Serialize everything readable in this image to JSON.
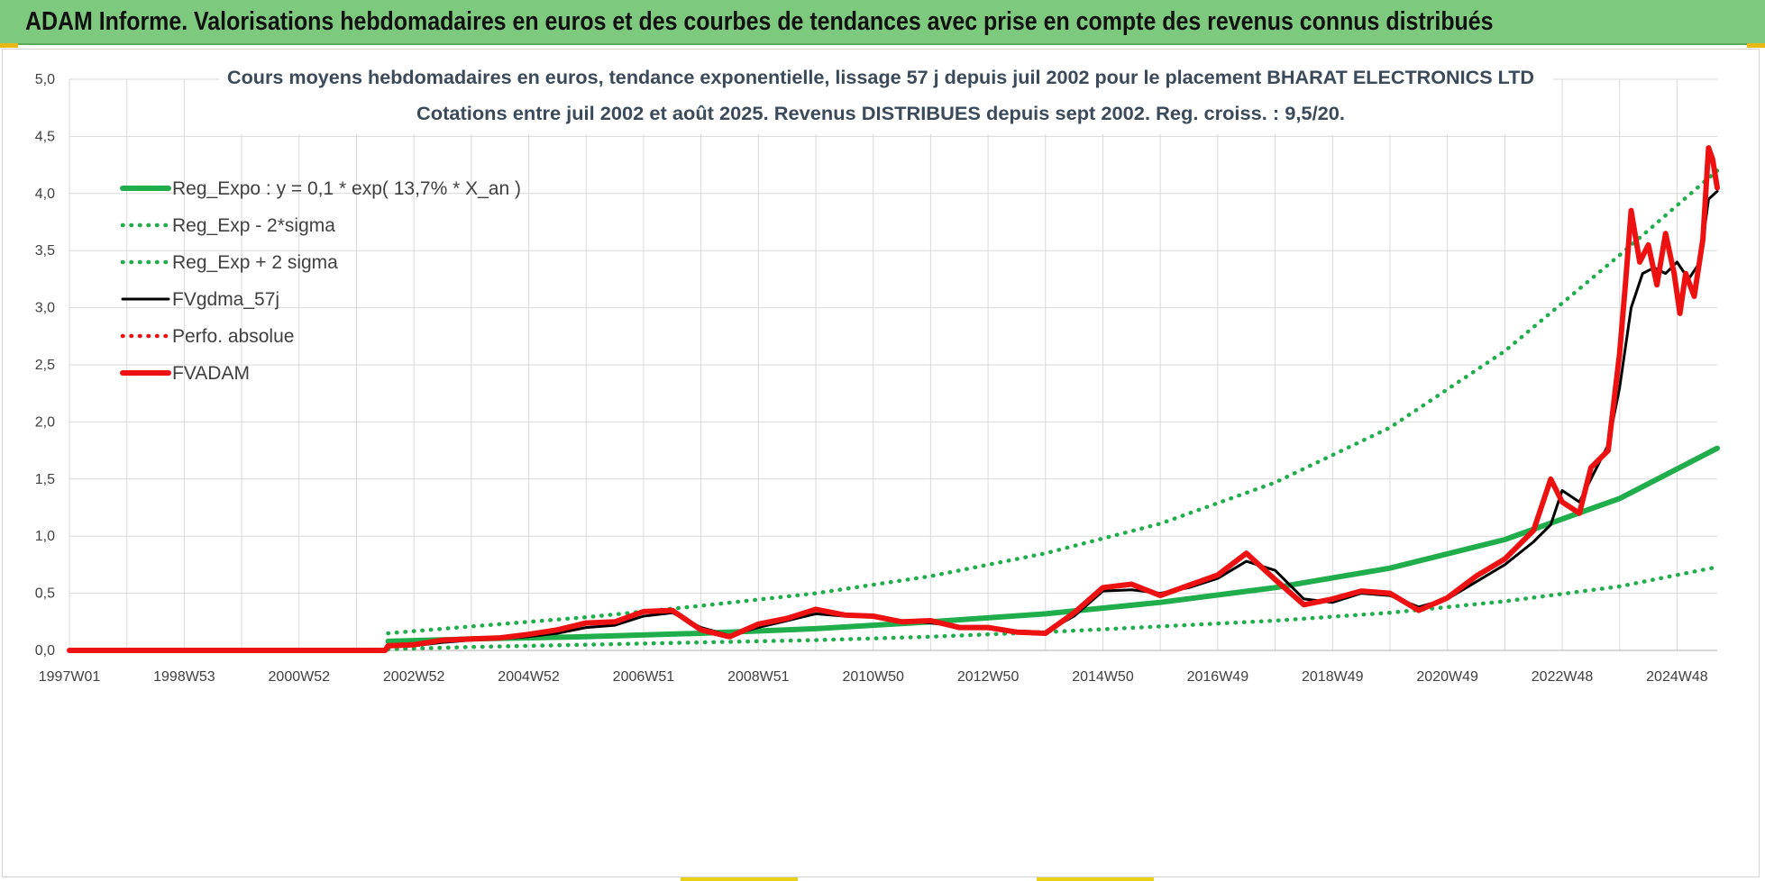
{
  "banner": {
    "title": "ADAM Informe. Valorisations hebdomadaires en euros et des courbes de tendances avec prise en compte des revenus connus distribués"
  },
  "colors": {
    "banner_bg": "#7dc97d",
    "trend_green": "#1fae4b",
    "line_black": "#000000",
    "line_red": "#ee1111",
    "grid": "#d9d9d9"
  },
  "chart_data": {
    "type": "line",
    "title": "Cours moyens hebdomadaires en euros, tendance exponentielle, lissage 57 j depuis juil 2002 pour le placement BHARAT ELECTRONICS LTD",
    "subtitle": "Cotations entre juil 2002 et août 2025. Revenus DISTRIBUES depuis sept 2002. Reg. croiss. : 9,5/20.",
    "xlabel": "",
    "ylabel": "",
    "x_ticks": [
      "1997W01",
      "1998W53",
      "2000W52",
      "2002W52",
      "2004W52",
      "2006W51",
      "2008W51",
      "2010W50",
      "2012W50",
      "2014W50",
      "2016W49",
      "2018W49",
      "2020W49",
      "2022W48",
      "2024W48"
    ],
    "x_tick_years": [
      1997.0,
      1999.0,
      2001.0,
      2003.0,
      2005.0,
      2007.0,
      2009.0,
      2011.0,
      2013.0,
      2015.0,
      2017.0,
      2019.0,
      2021.0,
      2023.0,
      2025.0
    ],
    "xlim": [
      1997.0,
      2025.7
    ],
    "ylim": [
      0,
      5
    ],
    "y_ticks": [
      "0,0",
      "0,5",
      "1,0",
      "1,5",
      "2,0",
      "2,5",
      "3,0",
      "3,5",
      "4,0",
      "4,5",
      "5,0"
    ],
    "grid": true,
    "legend_position": "top-left",
    "legend": [
      {
        "label": "Reg_Expo : y = 0,1 * exp( 13,7% *  X_an )",
        "color": "#1fae4b",
        "style": "solid-thick"
      },
      {
        "label": "Reg_Exp - 2*sigma",
        "color": "#1fae4b",
        "style": "dotted"
      },
      {
        "label": "Reg_Exp + 2 sigma",
        "color": "#1fae4b",
        "style": "dotted"
      },
      {
        "label": "FVgdma_57j",
        "color": "#000000",
        "style": "solid"
      },
      {
        "label": "Perfo. absolue",
        "color": "#ee1111",
        "style": "dotted"
      },
      {
        "label": "FVADAM",
        "color": "#ee1111",
        "style": "solid-thick"
      }
    ],
    "series": [
      {
        "name": "Reg_Expo : y = 0,1 * exp( 13,7% *  X_an )",
        "x": [
          2002.55,
          2004,
          2006,
          2008,
          2010,
          2012,
          2014,
          2016,
          2018,
          2020,
          2022,
          2024,
          2025.7
        ],
        "values": [
          0.08,
          0.1,
          0.12,
          0.15,
          0.19,
          0.25,
          0.32,
          0.42,
          0.55,
          0.72,
          0.97,
          1.33,
          1.77
        ]
      },
      {
        "name": "Reg_Exp - 2*sigma",
        "x": [
          2002.55,
          2004,
          2006,
          2008,
          2010,
          2012,
          2014,
          2016,
          2018,
          2020,
          2022,
          2024,
          2025.7
        ],
        "values": [
          0.01,
          0.03,
          0.05,
          0.07,
          0.09,
          0.12,
          0.16,
          0.21,
          0.26,
          0.33,
          0.43,
          0.56,
          0.73
        ]
      },
      {
        "name": "Reg_Exp + 2 sigma",
        "x": [
          2002.55,
          2004,
          2006,
          2008,
          2010,
          2012,
          2014,
          2016,
          2018,
          2020,
          2022,
          2024,
          2025.7
        ],
        "values": [
          0.15,
          0.21,
          0.29,
          0.39,
          0.5,
          0.65,
          0.85,
          1.11,
          1.47,
          1.95,
          2.62,
          3.46,
          4.2
        ]
      },
      {
        "name": "FVgdma_57j",
        "x": [
          1997.0,
          2002.5,
          2002.55,
          2003.0,
          2003.5,
          2004.0,
          2004.5,
          2005.0,
          2005.5,
          2006.0,
          2006.5,
          2007.0,
          2007.5,
          2008.0,
          2008.5,
          2009.0,
          2009.5,
          2010.0,
          2010.5,
          2011.0,
          2011.5,
          2012.0,
          2012.5,
          2013.0,
          2013.5,
          2014.0,
          2014.5,
          2015.0,
          2015.5,
          2016.0,
          2016.5,
          2017.0,
          2017.5,
          2018.0,
          2018.5,
          2019.0,
          2019.5,
          2020.0,
          2020.5,
          2021.0,
          2021.5,
          2022.0,
          2022.5,
          2022.8,
          2023.0,
          2023.3,
          2023.5,
          2023.8,
          2024.0,
          2024.2,
          2024.4,
          2024.6,
          2024.8,
          2025.0,
          2025.2,
          2025.4,
          2025.55,
          2025.7
        ],
        "values": [
          0.0,
          0.0,
          0.03,
          0.04,
          0.07,
          0.09,
          0.1,
          0.12,
          0.15,
          0.2,
          0.22,
          0.3,
          0.33,
          0.2,
          0.13,
          0.2,
          0.26,
          0.32,
          0.3,
          0.29,
          0.26,
          0.24,
          0.21,
          0.19,
          0.17,
          0.16,
          0.3,
          0.52,
          0.53,
          0.5,
          0.55,
          0.63,
          0.78,
          0.7,
          0.45,
          0.42,
          0.5,
          0.48,
          0.38,
          0.45,
          0.6,
          0.75,
          0.95,
          1.1,
          1.4,
          1.3,
          1.5,
          1.8,
          2.3,
          3.0,
          3.3,
          3.35,
          3.3,
          3.4,
          3.25,
          3.4,
          3.95,
          4.02
        ]
      },
      {
        "name": "FVADAM",
        "x": [
          1997.0,
          2002.5,
          2002.55,
          2003.0,
          2003.5,
          2004.0,
          2004.5,
          2005.0,
          2005.5,
          2006.0,
          2006.5,
          2007.0,
          2007.5,
          2008.0,
          2008.5,
          2009.0,
          2009.5,
          2010.0,
          2010.5,
          2011.0,
          2011.5,
          2012.0,
          2012.5,
          2013.0,
          2013.5,
          2014.0,
          2014.5,
          2015.0,
          2015.5,
          2016.0,
          2016.5,
          2017.0,
          2017.5,
          2018.0,
          2018.5,
          2019.0,
          2019.5,
          2020.0,
          2020.5,
          2021.0,
          2021.5,
          2022.0,
          2022.5,
          2022.8,
          2023.0,
          2023.3,
          2023.5,
          2023.8,
          2024.0,
          2024.1,
          2024.2,
          2024.35,
          2024.5,
          2024.65,
          2024.8,
          2024.95,
          2025.05,
          2025.15,
          2025.3,
          2025.45,
          2025.55,
          2025.62,
          2025.7
        ],
        "values": [
          0.0,
          0.0,
          0.04,
          0.05,
          0.09,
          0.1,
          0.11,
          0.14,
          0.18,
          0.24,
          0.25,
          0.34,
          0.35,
          0.18,
          0.12,
          0.23,
          0.28,
          0.36,
          0.31,
          0.3,
          0.25,
          0.26,
          0.2,
          0.2,
          0.16,
          0.15,
          0.33,
          0.55,
          0.58,
          0.48,
          0.57,
          0.66,
          0.85,
          0.62,
          0.4,
          0.45,
          0.52,
          0.5,
          0.35,
          0.46,
          0.65,
          0.8,
          1.05,
          1.5,
          1.3,
          1.2,
          1.6,
          1.75,
          2.6,
          3.2,
          3.85,
          3.4,
          3.55,
          3.2,
          3.65,
          3.3,
          2.95,
          3.3,
          3.1,
          3.6,
          4.4,
          4.3,
          4.05
        ]
      }
    ]
  }
}
